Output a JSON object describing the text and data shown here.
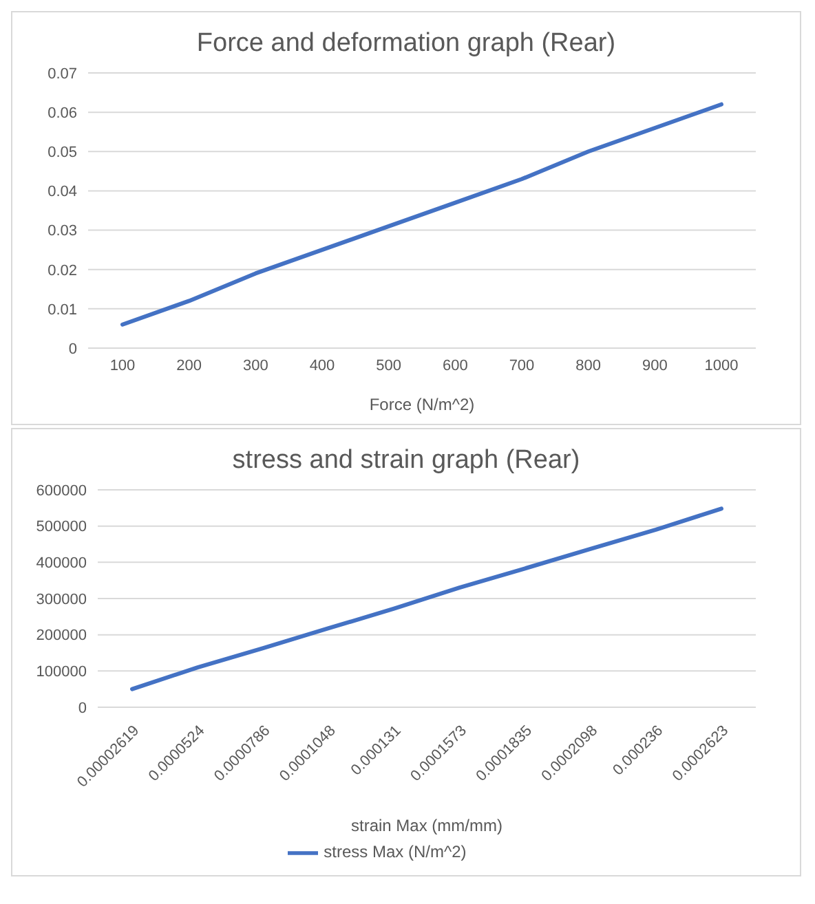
{
  "chart_data": [
    {
      "type": "line",
      "title": "Force and deformation graph (Rear)",
      "xlabel": "Force (N/m^2)",
      "categories": [
        "100",
        "200",
        "300",
        "400",
        "500",
        "600",
        "700",
        "800",
        "900",
        "1000"
      ],
      "series": [
        {
          "color": "#4472c4",
          "values": [
            0.006,
            0.012,
            0.019,
            0.025,
            0.031,
            0.037,
            0.043,
            0.05,
            0.056,
            0.062
          ]
        }
      ],
      "ylim": [
        0,
        0.07
      ],
      "yticks": [
        0,
        0.01,
        0.02,
        0.03,
        0.04,
        0.05,
        0.06,
        0.07
      ],
      "grid": "y",
      "legend": false
    },
    {
      "type": "line",
      "title": "stress and strain graph (Rear)",
      "xlabel": "strain Max (mm/mm)",
      "categories": [
        "0.00002619",
        "0.0000524",
        "0.0000786",
        "0.0001048",
        "0.000131",
        "0.0001573",
        "0.0001835",
        "0.0002098",
        "0.000236",
        "0.0002623"
      ],
      "series": [
        {
          "name": "stress Max (N/m^2)",
          "color": "#4472c4",
          "values": [
            50000,
            110000,
            163000,
            218000,
            272000,
            330000,
            383000,
            437000,
            490000,
            548000
          ]
        }
      ],
      "ylim": [
        0,
        600000
      ],
      "yticks": [
        0,
        100000,
        200000,
        300000,
        400000,
        500000,
        600000
      ],
      "grid": "y",
      "legend": "bottom"
    }
  ]
}
